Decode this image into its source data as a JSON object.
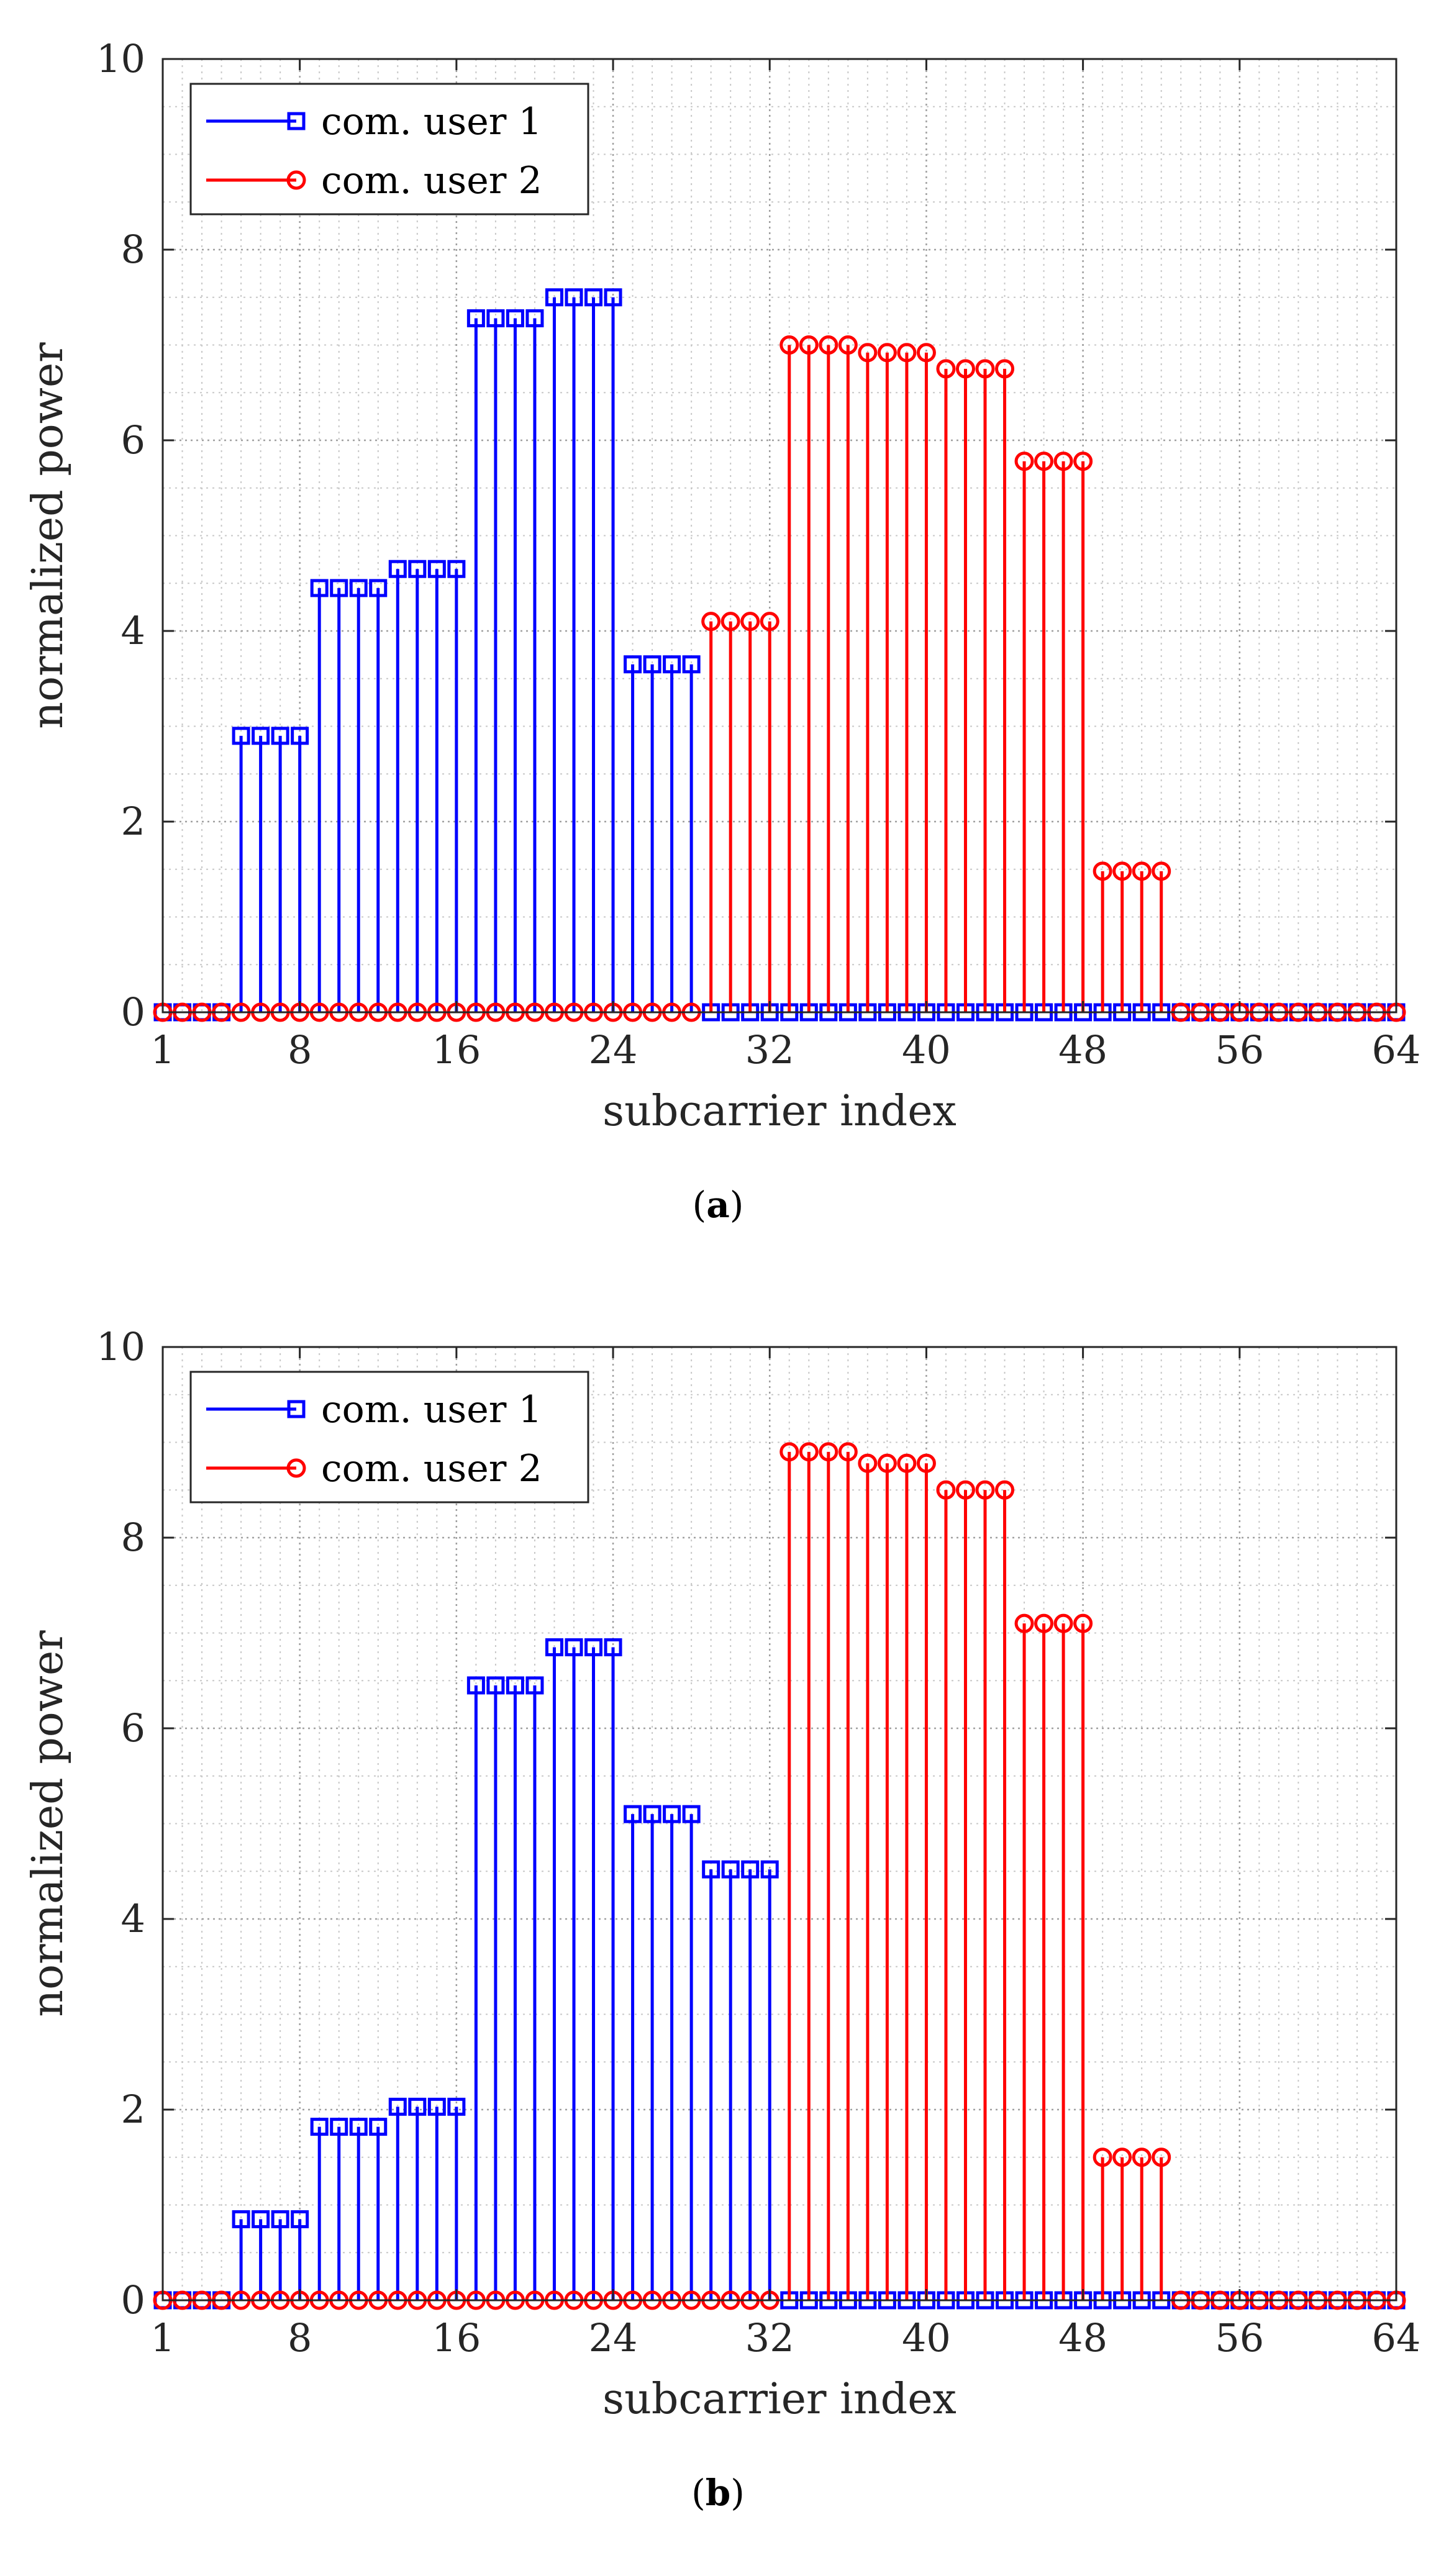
{
  "chart_data": [
    {
      "type": "stem",
      "caption": "(a)",
      "caption_letter": "a",
      "xlabel": "subcarrier index",
      "ylabel": "normalized power",
      "xlim": [
        1,
        64
      ],
      "ylim": [
        0,
        10
      ],
      "xticks": [
        1,
        8,
        16,
        24,
        32,
        40,
        48,
        56,
        64
      ],
      "yticks": [
        0,
        2,
        4,
        6,
        8,
        10
      ],
      "grid": "major and minor, dotted",
      "legend_position": "top-left",
      "series": [
        {
          "name": "com. user 1",
          "color": "#0000ff",
          "marker": "square",
          "x": [
            1,
            2,
            3,
            4,
            5,
            6,
            7,
            8,
            9,
            10,
            11,
            12,
            13,
            14,
            15,
            16,
            17,
            18,
            19,
            20,
            21,
            22,
            23,
            24,
            25,
            26,
            27,
            28,
            29,
            30,
            31,
            32,
            33,
            34,
            35,
            36,
            37,
            38,
            39,
            40,
            41,
            42,
            43,
            44,
            45,
            46,
            47,
            48,
            49,
            50,
            51,
            52,
            53,
            54,
            55,
            56,
            57,
            58,
            59,
            60,
            61,
            62,
            63,
            64
          ],
          "y": [
            0,
            0,
            0,
            0,
            2.9,
            2.9,
            2.9,
            2.9,
            4.45,
            4.45,
            4.45,
            4.45,
            4.65,
            4.65,
            4.65,
            4.65,
            7.28,
            7.28,
            7.28,
            7.28,
            7.5,
            7.5,
            7.5,
            7.5,
            3.65,
            3.65,
            3.65,
            3.65,
            0,
            0,
            0,
            0,
            0,
            0,
            0,
            0,
            0,
            0,
            0,
            0,
            0,
            0,
            0,
            0,
            0,
            0,
            0,
            0,
            0,
            0,
            0,
            0,
            0,
            0,
            0,
            0,
            0,
            0,
            0,
            0,
            0,
            0,
            0,
            0
          ]
        },
        {
          "name": "com. user 2",
          "color": "#ff0000",
          "marker": "circle",
          "x": [
            1,
            2,
            3,
            4,
            5,
            6,
            7,
            8,
            9,
            10,
            11,
            12,
            13,
            14,
            15,
            16,
            17,
            18,
            19,
            20,
            21,
            22,
            23,
            24,
            25,
            26,
            27,
            28,
            29,
            30,
            31,
            32,
            33,
            34,
            35,
            36,
            37,
            38,
            39,
            40,
            41,
            42,
            43,
            44,
            45,
            46,
            47,
            48,
            49,
            50,
            51,
            52,
            53,
            54,
            55,
            56,
            57,
            58,
            59,
            60,
            61,
            62,
            63,
            64
          ],
          "y": [
            0,
            0,
            0,
            0,
            0,
            0,
            0,
            0,
            0,
            0,
            0,
            0,
            0,
            0,
            0,
            0,
            0,
            0,
            0,
            0,
            0,
            0,
            0,
            0,
            0,
            0,
            0,
            0,
            4.1,
            4.1,
            4.1,
            4.1,
            7.0,
            7.0,
            7.0,
            7.0,
            6.92,
            6.92,
            6.92,
            6.92,
            6.75,
            6.75,
            6.75,
            6.75,
            5.78,
            5.78,
            5.78,
            5.78,
            1.48,
            1.48,
            1.48,
            1.48,
            0,
            0,
            0,
            0,
            0,
            0,
            0,
            0,
            0,
            0,
            0,
            0
          ]
        }
      ]
    },
    {
      "type": "stem",
      "caption": "(b)",
      "caption_letter": "b",
      "xlabel": "subcarrier index",
      "ylabel": "normalized power",
      "xlim": [
        1,
        64
      ],
      "ylim": [
        0,
        10
      ],
      "xticks": [
        1,
        8,
        16,
        24,
        32,
        40,
        48,
        56,
        64
      ],
      "yticks": [
        0,
        2,
        4,
        6,
        8,
        10
      ],
      "grid": "major and minor, dotted",
      "legend_position": "top-left",
      "series": [
        {
          "name": "com. user 1",
          "color": "#0000ff",
          "marker": "square",
          "x": [
            1,
            2,
            3,
            4,
            5,
            6,
            7,
            8,
            9,
            10,
            11,
            12,
            13,
            14,
            15,
            16,
            17,
            18,
            19,
            20,
            21,
            22,
            23,
            24,
            25,
            26,
            27,
            28,
            29,
            30,
            31,
            32,
            33,
            34,
            35,
            36,
            37,
            38,
            39,
            40,
            41,
            42,
            43,
            44,
            45,
            46,
            47,
            48,
            49,
            50,
            51,
            52,
            53,
            54,
            55,
            56,
            57,
            58,
            59,
            60,
            61,
            62,
            63,
            64
          ],
          "y": [
            0,
            0,
            0,
            0,
            0.85,
            0.85,
            0.85,
            0.85,
            1.82,
            1.82,
            1.82,
            1.82,
            2.03,
            2.03,
            2.03,
            2.03,
            6.45,
            6.45,
            6.45,
            6.45,
            6.85,
            6.85,
            6.85,
            6.85,
            5.1,
            5.1,
            5.1,
            5.1,
            4.52,
            4.52,
            4.52,
            4.52,
            0,
            0,
            0,
            0,
            0,
            0,
            0,
            0,
            0,
            0,
            0,
            0,
            0,
            0,
            0,
            0,
            0,
            0,
            0,
            0,
            0,
            0,
            0,
            0,
            0,
            0,
            0,
            0,
            0,
            0,
            0,
            0
          ]
        },
        {
          "name": "com. user 2",
          "color": "#ff0000",
          "marker": "circle",
          "x": [
            1,
            2,
            3,
            4,
            5,
            6,
            7,
            8,
            9,
            10,
            11,
            12,
            13,
            14,
            15,
            16,
            17,
            18,
            19,
            20,
            21,
            22,
            23,
            24,
            25,
            26,
            27,
            28,
            29,
            30,
            31,
            32,
            33,
            34,
            35,
            36,
            37,
            38,
            39,
            40,
            41,
            42,
            43,
            44,
            45,
            46,
            47,
            48,
            49,
            50,
            51,
            52,
            53,
            54,
            55,
            56,
            57,
            58,
            59,
            60,
            61,
            62,
            63,
            64
          ],
          "y": [
            0,
            0,
            0,
            0,
            0,
            0,
            0,
            0,
            0,
            0,
            0,
            0,
            0,
            0,
            0,
            0,
            0,
            0,
            0,
            0,
            0,
            0,
            0,
            0,
            0,
            0,
            0,
            0,
            0,
            0,
            0,
            0,
            8.9,
            8.9,
            8.9,
            8.9,
            8.78,
            8.78,
            8.78,
            8.78,
            8.5,
            8.5,
            8.5,
            8.5,
            7.1,
            7.1,
            7.1,
            7.1,
            1.5,
            1.5,
            1.5,
            1.5,
            0,
            0,
            0,
            0,
            0,
            0,
            0,
            0,
            0,
            0,
            0,
            0
          ]
        }
      ]
    }
  ]
}
